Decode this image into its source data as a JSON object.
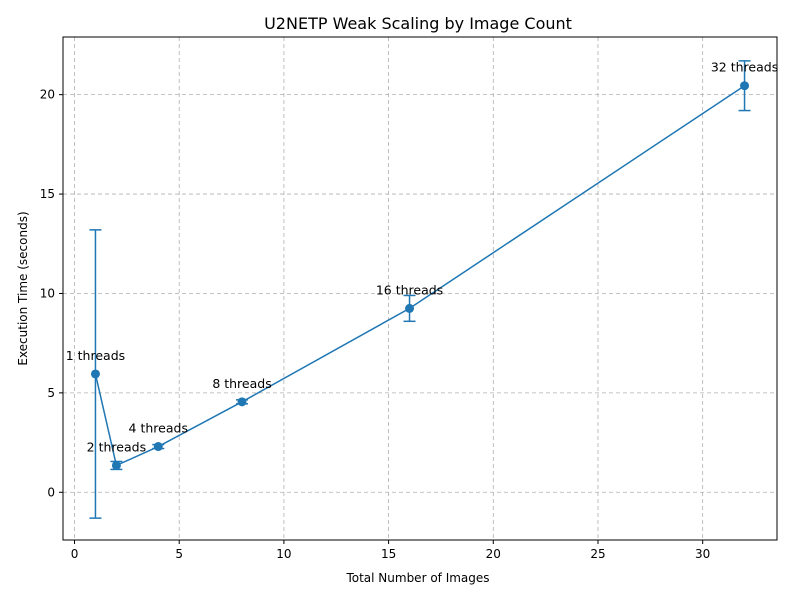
{
  "chart_data": {
    "type": "line",
    "title": "U2NETP Weak Scaling by Image Count",
    "xlabel": "Total Number of Images",
    "ylabel": "Execution Time (seconds)",
    "xlim": [
      -0.55,
      33.55
    ],
    "ylim": [
      -2.4,
      22.9
    ],
    "xticks": [
      0,
      5,
      10,
      15,
      20,
      25,
      30
    ],
    "yticks": [
      0,
      5,
      10,
      15,
      20
    ],
    "grid": true,
    "color": "#1f77b4",
    "series": [
      {
        "x": [
          1,
          2,
          4,
          8,
          16,
          32
        ],
        "y": [
          5.95,
          1.35,
          2.3,
          4.55,
          9.25,
          20.45
        ],
        "err": [
          7.25,
          0.2,
          0.1,
          0.1,
          0.65,
          1.25
        ],
        "labels": [
          "1 threads",
          "2 threads",
          "4 threads",
          "8 threads",
          "16 threads",
          "32 threads"
        ]
      }
    ]
  }
}
